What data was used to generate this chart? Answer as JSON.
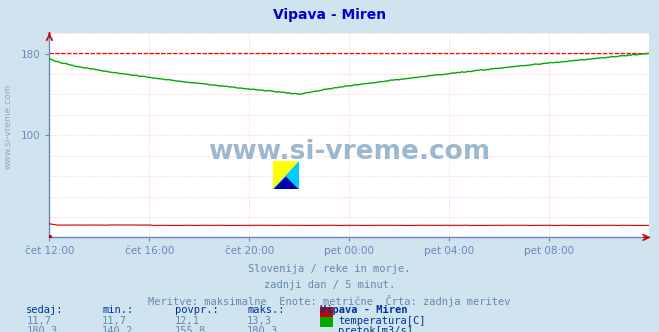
{
  "title": "Vipava - Miren",
  "title_color": "#0000cc",
  "bg_color": "#d0e4f0",
  "plot_bg_color": "#ffffff",
  "grid_color": "#ffb0b0",
  "axis_color": "#6688bb",
  "xlim": [
    0,
    288
  ],
  "ylim": [
    0,
    200
  ],
  "ytick_positions": [
    100,
    180
  ],
  "xtick_labels": [
    "čet 12:00",
    "čet 16:00",
    "čet 20:00",
    "pet 00:00",
    "pet 04:00",
    "pet 08:00"
  ],
  "xtick_positions": [
    0,
    48,
    96,
    144,
    192,
    240
  ],
  "tick_color": "#6688bb",
  "temp_color": "#cc0000",
  "flow_color": "#00aa00",
  "max_line_color": "#ff0000",
  "watermark_text": "www.si-vreme.com",
  "watermark_color": "#9bb8d0",
  "subtitle1": "Slovenija / reke in morje.",
  "subtitle2": "zadnji dan / 5 minut.",
  "subtitle3": "Meritve: maksimalne  Enote: metrične  Črta: zadnja meritev",
  "subtitle_color": "#6688aa",
  "footer_station": "Vipava - Miren",
  "footer_series": [
    "temperatura[C]",
    "pretok[m3/s]"
  ],
  "footer_color": "#6688aa",
  "footer_bold_color": "#003399",
  "series_colors": [
    "#cc0000",
    "#00aa00"
  ],
  "n_points": 289
}
